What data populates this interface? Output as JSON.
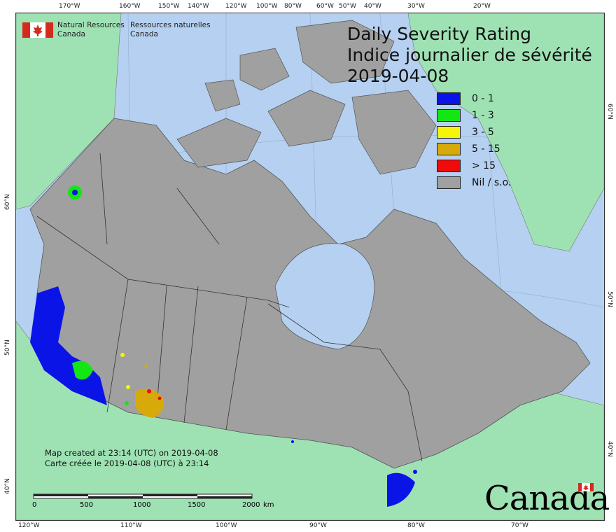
{
  "title": {
    "line1": "Daily Severity Rating",
    "line2": "Indice journalier de sévérité",
    "date": "2019-04-08"
  },
  "agency": {
    "en_line1": "Natural Resources",
    "en_line2": "Canada",
    "fr_line1": "Ressources naturelles",
    "fr_line2": "Canada"
  },
  "legend": [
    {
      "label": "0 - 1",
      "color": "#0a14e6"
    },
    {
      "label": "1 - 3",
      "color": "#14e614"
    },
    {
      "label": "3 - 5",
      "color": "#f5f50a"
    },
    {
      "label": "5 - 15",
      "color": "#d7aa0a"
    },
    {
      "label": "> 15",
      "color": "#f00a0a"
    },
    {
      "label": "Nil / s.o.",
      "color": "#a0a0a0"
    }
  ],
  "created": {
    "en": "Map created at 23:14 (UTC) on 2019-04-08",
    "fr": "Carte créée le 2019-04-08 (UTC) à 23:14"
  },
  "scale": {
    "labels": [
      "0",
      "500",
      "1000",
      "1500",
      "2000"
    ],
    "unit": "km"
  },
  "wordmark": "Canada",
  "ticks": {
    "top": [
      "170°W",
      "160°W",
      "150°W",
      "140°W",
      "120°W",
      "100°W",
      "80°W",
      "60°W",
      "50°W",
      "40°W",
      "30°W",
      "20°W"
    ],
    "bottom": [
      "120°W",
      "110°W",
      "100°W",
      "90°W",
      "80°W",
      "70°W"
    ],
    "left": [
      "60°N",
      "50°N",
      "40°N"
    ],
    "right": [
      "60°N",
      "50°N",
      "40°N"
    ]
  },
  "colors": {
    "water": "#b5d0f0",
    "land_outside": "#9ee2b4",
    "canada_nil": "#a0a0a0"
  }
}
